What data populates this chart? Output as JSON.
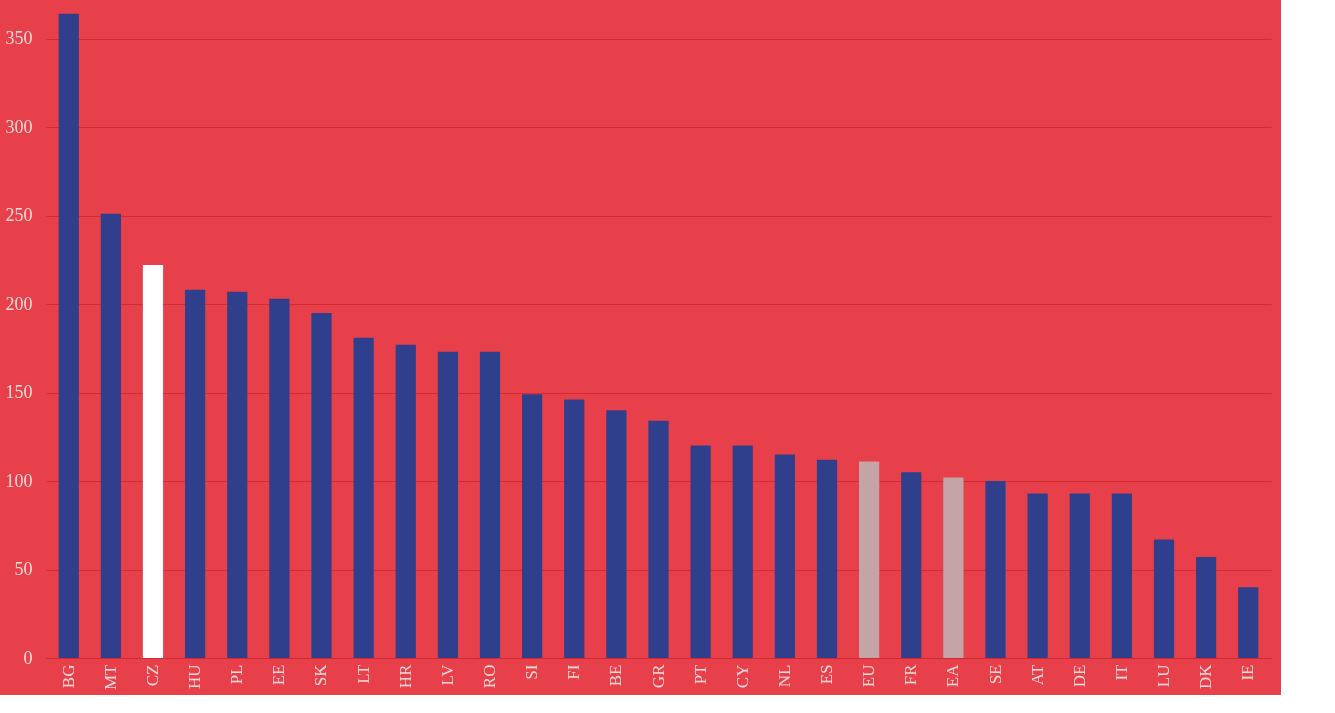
{
  "chart_data": {
    "type": "bar",
    "categories": [
      "BG",
      "MT",
      "CZ",
      "HU",
      "PL",
      "EE",
      "SK",
      "LT",
      "HR",
      "LV",
      "RO",
      "SI",
      "FI",
      "BE",
      "GR",
      "PT",
      "CY",
      "NL",
      "ES",
      "EU",
      "FR",
      "EA",
      "SE",
      "AT",
      "DE",
      "IT",
      "LU",
      "DK",
      "IE"
    ],
    "values": [
      364,
      251,
      222,
      208,
      207,
      203,
      195,
      181,
      177,
      173,
      173,
      149,
      146,
      140,
      134,
      120,
      120,
      115,
      112,
      111,
      105,
      102,
      100,
      93,
      93,
      93,
      67,
      57,
      40
    ],
    "colors": [
      "#2f3f8c",
      "#2f3f8c",
      "#ffffff",
      "#2f3f8c",
      "#2f3f8c",
      "#2f3f8c",
      "#2f3f8c",
      "#2f3f8c",
      "#2f3f8c",
      "#2f3f8c",
      "#2f3f8c",
      "#2f3f8c",
      "#2f3f8c",
      "#2f3f8c",
      "#2f3f8c",
      "#2f3f8c",
      "#2f3f8c",
      "#2f3f8c",
      "#2f3f8c",
      "#c4a4a6",
      "#2f3f8c",
      "#c4a4a6",
      "#2f3f8c",
      "#2f3f8c",
      "#2f3f8c",
      "#2f3f8c",
      "#2f3f8c",
      "#2f3f8c",
      "#2f3f8c"
    ],
    "ylim": [
      0,
      365
    ],
    "yticks": [
      0,
      50,
      100,
      150,
      200,
      250,
      300,
      350
    ],
    "grid": "y"
  }
}
